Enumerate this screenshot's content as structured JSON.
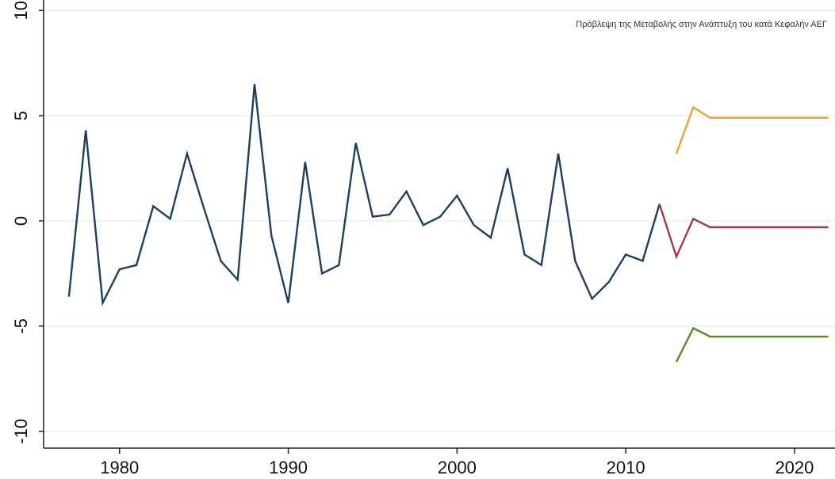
{
  "chart_data": {
    "type": "line",
    "title": "",
    "xlabel": "",
    "ylabel": "",
    "xlim": [
      1975.5,
      2022.4
    ],
    "ylim": [
      -10.8,
      10.5
    ],
    "x_ticks": [
      1980,
      1990,
      2000,
      2010,
      2020
    ],
    "y_ticks": [
      -10,
      -5,
      0,
      5,
      10
    ],
    "grid": "horizontal",
    "annotation": "Πρόβλεψη της Μεταβολής στην Ανάπτυξη του κατά Κεφαλήν ΑΕΓ",
    "series": [
      {
        "color": "#1f3f5f",
        "x": [
          1977,
          1978,
          1979,
          1980,
          1981,
          1982,
          1983,
          1984,
          1985,
          1986,
          1987,
          1988,
          1989,
          1990,
          1991,
          1992,
          1993,
          1994,
          1995,
          1996,
          1997,
          1998,
          1999,
          2000,
          2001,
          2002,
          2003,
          2004,
          2005,
          2006,
          2007,
          2008,
          2009,
          2010,
          2011,
          2012
        ],
        "y": [
          -3.6,
          4.3,
          -3.9,
          -2.3,
          -2.1,
          0.7,
          0.1,
          3.2,
          0.6,
          -1.9,
          -2.8,
          6.5,
          -0.7,
          -3.9,
          2.8,
          -2.5,
          -2.1,
          3.7,
          0.2,
          0.3,
          1.4,
          -0.2,
          0.2,
          1.2,
          -0.2,
          -0.8,
          2.5,
          -1.6,
          -2.1,
          3.2,
          -1.9,
          -3.7,
          -2.9,
          -1.6,
          -1.9,
          0.8
        ]
      },
      {
        "color": "#a03a4a",
        "x": [
          2012,
          2013,
          2014,
          2015,
          2016,
          2017,
          2018,
          2019,
          2020,
          2021,
          2022
        ],
        "y": [
          0.8,
          -1.7,
          0.1,
          -0.3,
          -0.3,
          -0.3,
          -0.3,
          -0.3,
          -0.3,
          -0.3,
          -0.3
        ]
      },
      {
        "color": "#f0a030",
        "x": [
          2013,
          2014,
          2015,
          2016,
          2017,
          2018,
          2019,
          2020,
          2021,
          2022
        ],
        "y": [
          3.2,
          5.4,
          4.9,
          4.9,
          4.9,
          4.9,
          4.9,
          4.9,
          4.9,
          4.9
        ]
      },
      {
        "color": "#5a8a2a",
        "x": [
          2013,
          2014,
          2015,
          2016,
          2017,
          2018,
          2019,
          2020,
          2021,
          2022
        ],
        "y": [
          -6.7,
          -5.1,
          -5.5,
          -5.5,
          -5.5,
          -5.5,
          -5.5,
          -5.5,
          -5.5,
          -5.5
        ]
      }
    ]
  }
}
